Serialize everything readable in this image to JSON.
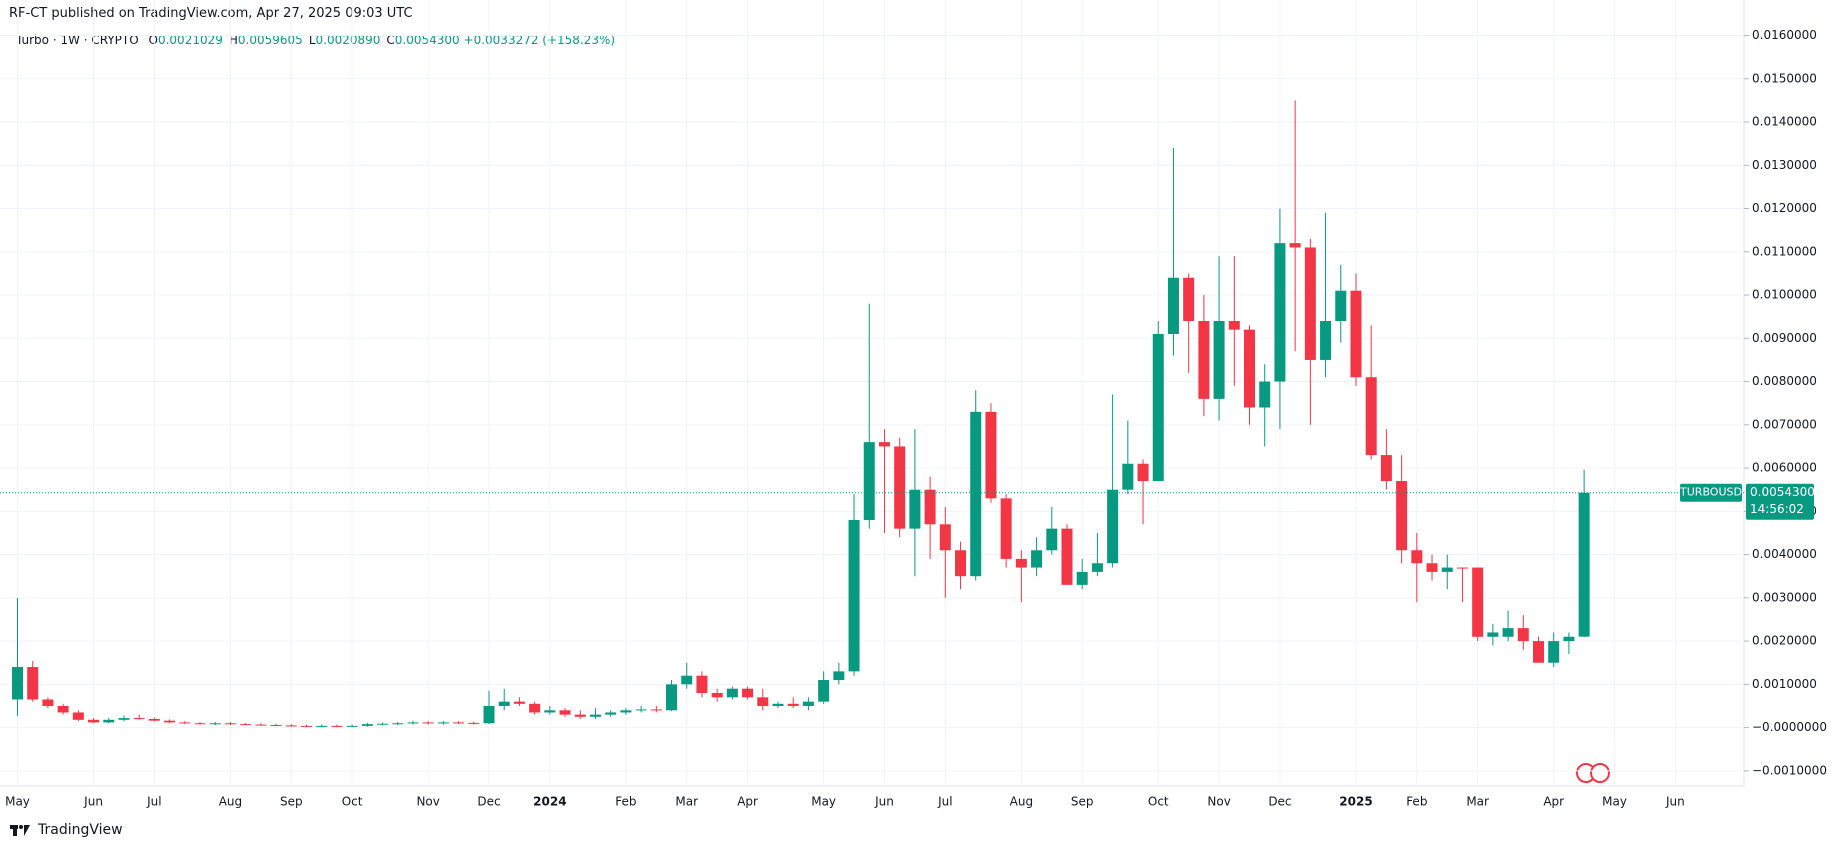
{
  "header": "RF-CT published on TradingView.com, Apr 27, 2025 09:03 UTC",
  "legend": {
    "symbol": "Turbo · 1W · CRYPTO",
    "fields": [
      {
        "key": "O",
        "text": "0.0021029"
      },
      {
        "key": "H",
        "text": "0.0059605"
      },
      {
        "key": "L",
        "text": "0.0020890"
      },
      {
        "key": "C",
        "text": "0.0054300"
      }
    ],
    "change": "+0.0033272 (+158.23%)"
  },
  "price_label": {
    "symbol": "TURBOUSD",
    "price": "0.0054300",
    "countdown": "14:56:02"
  },
  "footer": "TradingView",
  "chart_data": {
    "type": "candlestick",
    "up_color": "#089981",
    "down_color": "#f23645",
    "grid": true,
    "categories": [
      "May",
      null,
      null,
      null,
      null,
      "Jun",
      null,
      null,
      null,
      "Jul",
      null,
      null,
      null,
      null,
      "Aug",
      null,
      null,
      null,
      "Sep",
      null,
      null,
      null,
      "Oct",
      null,
      null,
      null,
      null,
      "Nov",
      null,
      null,
      null,
      "Dec",
      null,
      null,
      null,
      "2024",
      null,
      null,
      null,
      null,
      "Feb",
      null,
      null,
      null,
      "Mar",
      null,
      null,
      null,
      "Apr",
      null,
      null,
      null,
      null,
      "May",
      null,
      null,
      null,
      "Jun",
      null,
      null,
      null,
      "Jul",
      null,
      null,
      null,
      null,
      "Aug",
      null,
      null,
      null,
      "Sep",
      null,
      null,
      null,
      null,
      "Oct",
      null,
      null,
      null,
      "Nov",
      null,
      null,
      null,
      "Dec",
      null,
      null,
      null,
      null,
      "2025",
      null,
      null,
      null,
      "Feb",
      null,
      null,
      null,
      "Mar",
      null,
      null,
      null,
      null,
      "Apr",
      null,
      null,
      null,
      "May",
      null,
      null,
      null,
      "Jun"
    ],
    "open": [
      0.00065,
      0.0014,
      0.00065,
      0.0005,
      0.00035,
      0.00018,
      0.00012,
      0.00018,
      0.00022,
      0.0002,
      0.00016,
      0.00012,
      0.0001,
      9e-05,
      0.0001,
      8e-05,
      7e-05,
      6e-05,
      5e-05,
      4e-05,
      3e-05,
      4e-05,
      3e-05,
      4e-05,
      8e-05,
      9e-05,
      0.0001,
      0.00012,
      0.0001,
      0.00012,
      0.00011,
      0.0001,
      0.0005,
      0.0006,
      0.00055,
      0.00035,
      0.0004,
      0.0003,
      0.00025,
      0.0003,
      0.00035,
      0.0004,
      0.00042,
      0.0004,
      0.001,
      0.0012,
      0.0008,
      0.0007,
      0.0009,
      0.0007,
      0.0005,
      0.00055,
      0.0005,
      0.0006,
      0.0011,
      0.0013,
      0.0048,
      0.0066,
      0.0065,
      0.0046,
      0.0055,
      0.0047,
      0.0041,
      0.0035,
      0.0073,
      0.0053,
      0.0039,
      0.0037,
      0.0041,
      0.0046,
      0.0033,
      0.0036,
      0.0038,
      0.0055,
      0.0061,
      0.0057,
      0.0091,
      0.0104,
      0.0094,
      0.0076,
      0.0094,
      0.0092,
      0.0074,
      0.008,
      0.0112,
      0.0111,
      0.0085,
      0.0094,
      0.0101,
      0.0081,
      0.0063,
      0.0057,
      0.0041,
      0.0038,
      0.0036,
      0.0037,
      0.0037,
      0.0021,
      0.0021,
      0.0023,
      0.002,
      0.0015,
      0.002,
      0.0021029,
      null,
      null,
      null,
      null,
      null,
      null
    ],
    "high": [
      0.003,
      0.00154,
      0.0007,
      0.00055,
      0.0004,
      0.00022,
      0.00022,
      0.00028,
      0.0003,
      0.00023,
      0.00019,
      0.00015,
      0.00013,
      0.00013,
      0.00013,
      0.00011,
      0.0001,
      9e-05,
      8e-05,
      7e-05,
      7e-05,
      7e-05,
      7e-05,
      0.00011,
      0.00012,
      0.00013,
      0.00016,
      0.00015,
      0.00015,
      0.00015,
      0.00014,
      0.00085,
      0.0009,
      0.0007,
      0.0006,
      0.0005,
      0.00045,
      0.0004,
      0.00045,
      0.0004,
      0.00045,
      0.0005,
      0.0005,
      0.0011,
      0.0015,
      0.0013,
      0.0009,
      0.00095,
      0.00095,
      0.0009,
      0.0006,
      0.0007,
      0.0007,
      0.0013,
      0.0015,
      0.0054,
      0.0098,
      0.0069,
      0.0067,
      0.0069,
      0.0058,
      0.0051,
      0.0043,
      0.0078,
      0.0075,
      0.0054,
      0.0041,
      0.0044,
      0.0051,
      0.0047,
      0.0039,
      0.0045,
      0.0077,
      0.0071,
      0.0062,
      0.0094,
      0.0134,
      0.0105,
      0.01,
      0.0109,
      0.0109,
      0.0093,
      0.0084,
      0.012,
      0.0145,
      0.0113,
      0.0119,
      0.0107,
      0.0105,
      0.0093,
      0.0069,
      0.0063,
      0.0045,
      0.004,
      0.004,
      0.0037,
      0.0037,
      0.0024,
      0.0027,
      0.0026,
      0.0021,
      0.0022,
      0.0022,
      0.0059605,
      null,
      null,
      null,
      null,
      null,
      null
    ],
    "low": [
      0.00027,
      0.0006,
      0.00045,
      0.0003,
      0.00015,
      0.0001,
      0.0001,
      0.00015,
      0.00018,
      0.00014,
      0.0001,
      8e-05,
      7e-05,
      6e-05,
      6e-05,
      5e-05,
      4e-05,
      3e-05,
      2e-05,
      1e-05,
      1e-05,
      1e-05,
      1e-05,
      2e-05,
      5e-05,
      6e-05,
      7e-05,
      7e-05,
      7e-05,
      8e-05,
      7e-05,
      8e-05,
      0.0004,
      0.0005,
      0.0003,
      0.0003,
      0.00025,
      0.0002,
      0.0002,
      0.00025,
      0.0003,
      0.00035,
      0.00035,
      0.00038,
      0.0009,
      0.0007,
      0.0006,
      0.00065,
      0.00065,
      0.0004,
      0.00045,
      0.00045,
      0.0004,
      0.00055,
      0.001,
      0.0012,
      0.0046,
      0.0045,
      0.0044,
      0.0035,
      0.0039,
      0.003,
      0.0032,
      0.0034,
      0.0052,
      0.0037,
      0.0029,
      0.0035,
      0.004,
      0.0033,
      0.0032,
      0.0035,
      0.0037,
      0.0054,
      0.0047,
      0.0057,
      0.0086,
      0.0082,
      0.0072,
      0.0071,
      0.0079,
      0.007,
      0.0065,
      0.0069,
      0.0087,
      0.007,
      0.0081,
      0.0089,
      0.0079,
      0.0062,
      0.0055,
      0.0038,
      0.0029,
      0.0034,
      0.0032,
      0.0029,
      0.002,
      0.0019,
      0.002,
      0.0018,
      0.0015,
      0.0014,
      0.0017,
      0.002089,
      null,
      null,
      null,
      null,
      null,
      null
    ],
    "close": [
      0.0014,
      0.00065,
      0.0005,
      0.00035,
      0.00018,
      0.00012,
      0.00018,
      0.00022,
      0.0002,
      0.00016,
      0.00012,
      0.0001,
      9e-05,
      0.0001,
      8e-05,
      7e-05,
      6e-05,
      5e-05,
      4e-05,
      3e-05,
      4e-05,
      3e-05,
      4e-05,
      8e-05,
      9e-05,
      0.0001,
      0.00012,
      0.0001,
      0.00012,
      0.00011,
      0.0001,
      0.0005,
      0.0006,
      0.00055,
      0.00035,
      0.0004,
      0.0003,
      0.00025,
      0.0003,
      0.00035,
      0.0004,
      0.00042,
      0.0004,
      0.001,
      0.0012,
      0.0008,
      0.0007,
      0.0009,
      0.0007,
      0.0005,
      0.00055,
      0.0005,
      0.0006,
      0.0011,
      0.0013,
      0.0048,
      0.0066,
      0.0065,
      0.0046,
      0.0055,
      0.0047,
      0.0041,
      0.0035,
      0.0073,
      0.0053,
      0.0039,
      0.0037,
      0.0041,
      0.0046,
      0.0033,
      0.0036,
      0.0038,
      0.0055,
      0.0061,
      0.0057,
      0.0091,
      0.0104,
      0.0094,
      0.0076,
      0.0094,
      0.0092,
      0.0074,
      0.008,
      0.0112,
      0.0111,
      0.0085,
      0.0094,
      0.0101,
      0.0081,
      0.0063,
      0.0057,
      0.0041,
      0.0038,
      0.0036,
      0.0037,
      0.00368,
      0.0021,
      0.0022,
      0.0023,
      0.002,
      0.0015,
      0.002,
      0.0021,
      0.00543,
      null,
      null,
      null,
      null,
      null,
      null
    ],
    "ylim": [
      -0.00135,
      0.01622
    ],
    "yticks": [
      {
        "value": 0.016,
        "label": "0.0160000"
      },
      {
        "value": 0.015,
        "label": "0.0150000"
      },
      {
        "value": 0.014,
        "label": "0.0140000"
      },
      {
        "value": 0.013,
        "label": "0.0130000"
      },
      {
        "value": 0.012,
        "label": "0.0120000"
      },
      {
        "value": 0.011,
        "label": "0.0110000"
      },
      {
        "value": 0.01,
        "label": "0.0100000"
      },
      {
        "value": 0.009,
        "label": "0.0090000"
      },
      {
        "value": 0.008,
        "label": "0.0080000"
      },
      {
        "value": 0.007,
        "label": "0.0070000"
      },
      {
        "value": 0.006,
        "label": "0.0060000"
      },
      {
        "value": 0.005,
        "label": "0.0050000"
      },
      {
        "value": 0.004,
        "label": "0.0040000"
      },
      {
        "value": 0.003,
        "label": "0.0030000"
      },
      {
        "value": 0.002,
        "label": "0.0020000"
      },
      {
        "value": 0.001,
        "label": "0.0010000"
      },
      {
        "value": 0,
        "label": "−0.0000000"
      },
      {
        "value": -0.001,
        "label": "−0.0010000"
      }
    ]
  }
}
